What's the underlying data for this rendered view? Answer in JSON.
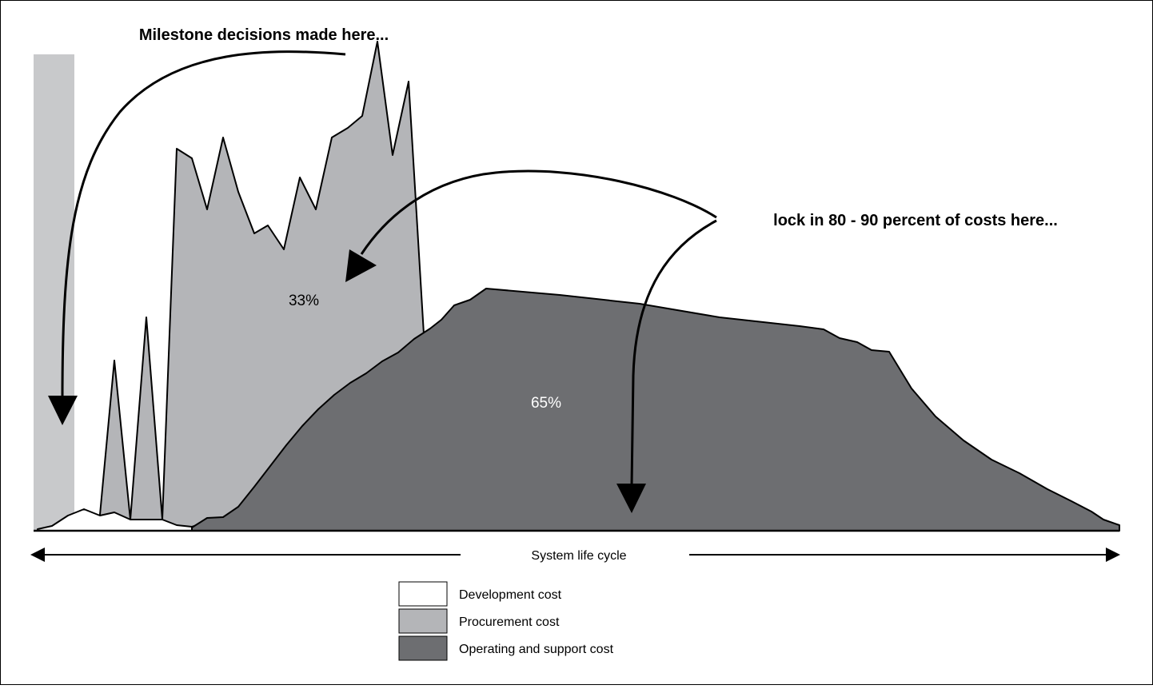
{
  "annotations": {
    "milestone_text": "Milestone decisions made here...",
    "lockin_text": "lock in 80 - 90 percent of costs here...",
    "procurement_pct": "33%",
    "operating_pct": "65%",
    "lifecycle_label": "System life cycle"
  },
  "legend": [
    {
      "label": "Development cost",
      "color": "#ffffff"
    },
    {
      "label": "Procurement cost",
      "color": "#b4b5b8"
    },
    {
      "label": "Operating and support cost",
      "color": "#6d6e71"
    }
  ],
  "colors": {
    "milestone_band": "#c8c9cb",
    "procurement": "#b4b5b8",
    "operating": "#6d6e71",
    "outline": "#000000"
  }
}
